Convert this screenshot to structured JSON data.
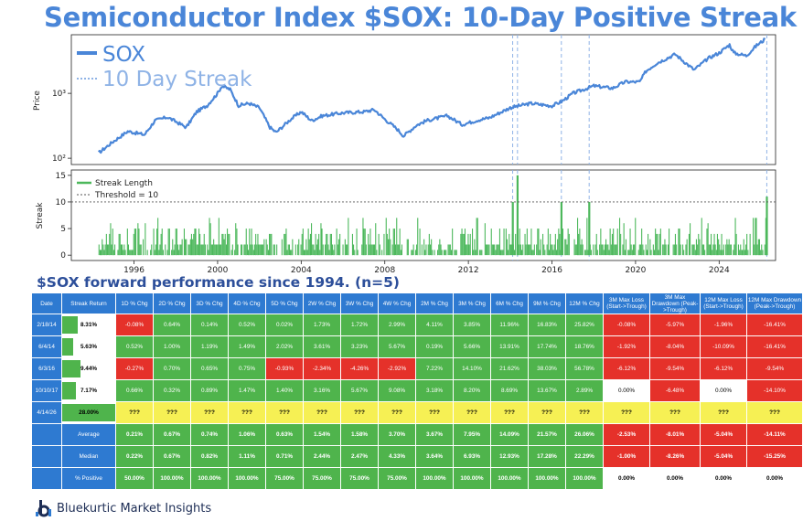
{
  "title": "Semiconductor Index $SOX: 10-Day Positive Streak",
  "chart_data": [
    {
      "type": "line",
      "ylabel": "Price",
      "yscale": "log",
      "ylim": [
        80,
        8000
      ],
      "xlim": [
        1993.0,
        2026.7
      ],
      "y_ticks": [
        100,
        1000
      ],
      "y_tick_labels": [
        "10²",
        "10³"
      ],
      "legend": [
        {
          "name": "SOX",
          "style": "solid",
          "color": "#4a86d8"
        },
        {
          "name": "10 Day Streak",
          "style": "dotted",
          "color": "#8fb3e6"
        }
      ],
      "series": [
        {
          "name": "SOX",
          "x": [
            1994.3,
            1995.0,
            1995.7,
            1996.5,
            1997.0,
            1997.6,
            1998.5,
            1999.0,
            1999.5,
            2000.0,
            2000.2,
            2000.6,
            2001.0,
            2001.5,
            2002.0,
            2002.5,
            2002.8,
            2003.5,
            2004.0,
            2004.5,
            2005.0,
            2006.0,
            2007.0,
            2007.5,
            2008.0,
            2008.6,
            2008.9,
            2009.5,
            2010.0,
            2011.0,
            2011.7,
            2012.5,
            2013.0,
            2014.0,
            2014.5,
            2015.0,
            2016.0,
            2016.5,
            2017.0,
            2018.0,
            2018.9,
            2019.5,
            2020.2,
            2020.5,
            2021.0,
            2021.9,
            2022.8,
            2023.5,
            2024.0,
            2024.5,
            2024.7,
            2025.3,
            2025.8,
            2026.2
          ],
          "values": [
            120,
            180,
            260,
            230,
            380,
            430,
            300,
            520,
            650,
            1000,
            1300,
            1150,
            650,
            700,
            600,
            300,
            250,
            400,
            520,
            380,
            450,
            500,
            520,
            560,
            400,
            280,
            220,
            320,
            380,
            450,
            330,
            390,
            420,
            600,
            650,
            700,
            640,
            760,
            1000,
            1300,
            1200,
            1500,
            1500,
            2200,
            2900,
            4000,
            2300,
            3500,
            4200,
            5600,
            4200,
            3800,
            5500,
            6800
          ]
        }
      ],
      "streak_dates": [
        2014.12,
        2014.35,
        2016.45,
        2017.78,
        2026.28
      ]
    },
    {
      "type": "bar",
      "ylabel": "Streak",
      "ylim": [
        -1,
        16
      ],
      "y_ticks": [
        0,
        5,
        10,
        15
      ],
      "x_ticks": [
        1996,
        2000,
        2004,
        2008,
        2012,
        2016,
        2020,
        2024
      ],
      "threshold": 10,
      "legend": [
        {
          "name": "Streak Length",
          "style": "solid",
          "color": "#4db85c"
        },
        {
          "name": "Threshold = 10",
          "style": "dotted",
          "color": "#555555"
        }
      ],
      "series_name": "Streak Length",
      "streak_peaks": [
        {
          "x": 2014.12,
          "value": 10
        },
        {
          "x": 2014.35,
          "value": 15
        },
        {
          "x": 2016.45,
          "value": 10
        },
        {
          "x": 2017.78,
          "value": 10
        },
        {
          "x": 2026.28,
          "value": 11
        }
      ]
    }
  ],
  "table": {
    "title": "$SOX forward performance since 1994. (n=5)",
    "headers": [
      "Date",
      "Streak Return",
      "1D % Chg",
      "2D % Chg",
      "3D % Chg",
      "4D % Chg",
      "5D % Chg",
      "2W % Chg",
      "3W % Chg",
      "4W % Chg",
      "2M % Chg",
      "3M % Chg",
      "6M % Chg",
      "9M % Chg",
      "12M % Chg",
      "3M Max Loss (Start->Trough)",
      "3M Max Drawdown (Peak->Trough)",
      "12M Max Loss (Start->Trough)",
      "12M Max Drawdown (Peak->Trough)"
    ],
    "rows": [
      {
        "date": "2/18/14",
        "ret": "8.31%",
        "ret_val": 8.31,
        "cells": [
          "-0.08%",
          "0.64%",
          "0.14%",
          "0.52%",
          "0.02%",
          "1.73%",
          "1.72%",
          "2.99%",
          "4.11%",
          "3.85%",
          "11.96%",
          "16.83%",
          "25.82%",
          "-0.08%",
          "-5.97%",
          "-1.96%",
          "-16.41%"
        ],
        "colors": [
          "r",
          "g",
          "g",
          "g",
          "g",
          "g",
          "g",
          "g",
          "g",
          "g",
          "g",
          "g",
          "g",
          "r",
          "r",
          "r",
          "r"
        ]
      },
      {
        "date": "6/4/14",
        "ret": "5.63%",
        "ret_val": 5.63,
        "cells": [
          "0.52%",
          "1.00%",
          "1.19%",
          "1.49%",
          "2.02%",
          "3.61%",
          "3.23%",
          "5.67%",
          "0.19%",
          "5.66%",
          "13.91%",
          "17.74%",
          "18.76%",
          "-1.92%",
          "-8.04%",
          "-10.09%",
          "-16.41%"
        ],
        "colors": [
          "g",
          "g",
          "g",
          "g",
          "g",
          "g",
          "g",
          "g",
          "g",
          "g",
          "g",
          "g",
          "g",
          "r",
          "r",
          "r",
          "r"
        ]
      },
      {
        "date": "6/3/16",
        "ret": "9.44%",
        "ret_val": 9.44,
        "cells": [
          "-0.27%",
          "0.70%",
          "0.65%",
          "0.75%",
          "-0.93%",
          "-2.34%",
          "-4.26%",
          "-2.92%",
          "7.22%",
          "14.10%",
          "21.62%",
          "38.03%",
          "56.78%",
          "-6.12%",
          "-9.54%",
          "-6.12%",
          "-9.54%"
        ],
        "colors": [
          "r",
          "g",
          "g",
          "g",
          "r",
          "r",
          "r",
          "r",
          "g",
          "g",
          "g",
          "g",
          "g",
          "r",
          "r",
          "r",
          "r"
        ]
      },
      {
        "date": "10/10/17",
        "ret": "7.17%",
        "ret_val": 7.17,
        "cells": [
          "0.66%",
          "0.32%",
          "0.89%",
          "1.47%",
          "1.40%",
          "3.16%",
          "5.67%",
          "9.08%",
          "3.18%",
          "8.20%",
          "8.69%",
          "13.67%",
          "2.89%",
          "0.00%",
          "-6.48%",
          "0.00%",
          "-14.10%"
        ],
        "colors": [
          "g",
          "g",
          "g",
          "g",
          "g",
          "g",
          "g",
          "g",
          "g",
          "g",
          "g",
          "g",
          "g",
          "w",
          "r",
          "w",
          "r"
        ]
      },
      {
        "date": "4/14/26",
        "ret": "28.00%",
        "ret_val": 28.0,
        "cells": [
          "???",
          "???",
          "???",
          "???",
          "???",
          "???",
          "???",
          "???",
          "???",
          "???",
          "???",
          "???",
          "???",
          "???",
          "???",
          "???",
          "???"
        ],
        "colors": [
          "y",
          "y",
          "y",
          "y",
          "y",
          "y",
          "y",
          "y",
          "y",
          "y",
          "y",
          "y",
          "y",
          "y",
          "y",
          "y",
          "y"
        ]
      }
    ],
    "stats": [
      {
        "label": "Average",
        "cells": [
          "0.21%",
          "0.67%",
          "0.74%",
          "1.06%",
          "0.63%",
          "1.54%",
          "1.58%",
          "3.70%",
          "3.67%",
          "7.95%",
          "14.09%",
          "21.57%",
          "26.06%",
          "-2.53%",
          "-8.01%",
          "-5.04%",
          "-14.11%"
        ],
        "colors": [
          "g",
          "g",
          "g",
          "g",
          "g",
          "g",
          "g",
          "g",
          "g",
          "g",
          "g",
          "g",
          "g",
          "r",
          "r",
          "r",
          "r"
        ]
      },
      {
        "label": "Median",
        "cells": [
          "0.22%",
          "0.67%",
          "0.82%",
          "1.11%",
          "0.71%",
          "2.44%",
          "2.47%",
          "4.33%",
          "3.64%",
          "6.93%",
          "12.93%",
          "17.28%",
          "22.29%",
          "-1.00%",
          "-8.26%",
          "-5.04%",
          "-15.25%"
        ],
        "colors": [
          "g",
          "g",
          "g",
          "g",
          "g",
          "g",
          "g",
          "g",
          "g",
          "g",
          "g",
          "g",
          "g",
          "r",
          "r",
          "r",
          "r"
        ]
      },
      {
        "label": "% Positive",
        "cells": [
          "50.00%",
          "100.00%",
          "100.00%",
          "100.00%",
          "75.00%",
          "75.00%",
          "75.00%",
          "75.00%",
          "100.00%",
          "100.00%",
          "100.00%",
          "100.00%",
          "100.00%",
          "0.00%",
          "0.00%",
          "0.00%",
          "0.00%"
        ],
        "colors": [
          "g",
          "g",
          "g",
          "g",
          "g",
          "g",
          "g",
          "g",
          "g",
          "g",
          "g",
          "g",
          "g",
          "w",
          "w",
          "w",
          "w"
        ]
      }
    ]
  },
  "footer": {
    "brand": "Bluekurtic Market Insights",
    "logo_icon": "bluekurtic-logo-icon"
  },
  "colors": {
    "title": "#4a86d8",
    "sox_line": "#4a86d8",
    "streak_bar": "#4db85c",
    "table_header": "#2e7ad1",
    "positive": "#4fb44c",
    "negative": "#e5312a",
    "pending": "#f6f054"
  }
}
